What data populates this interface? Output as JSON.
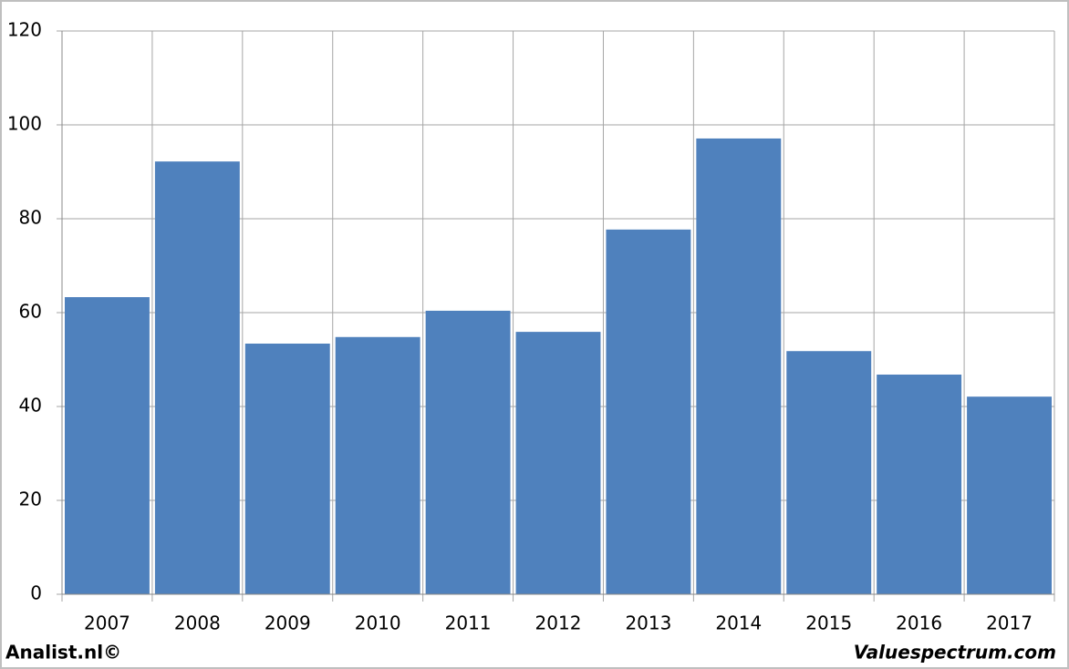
{
  "chart_data": {
    "type": "bar",
    "categories": [
      "2007",
      "2008",
      "2009",
      "2010",
      "2011",
      "2012",
      "2013",
      "2014",
      "2015",
      "2016",
      "2017"
    ],
    "values": [
      63.3,
      92.2,
      53.4,
      54.8,
      60.4,
      55.9,
      77.7,
      97.1,
      51.8,
      46.8,
      42.1
    ],
    "color": "#4f81bd",
    "ylim": [
      0,
      120
    ],
    "yticks": [
      0,
      20,
      40,
      60,
      80,
      100,
      120
    ],
    "grid": true
  },
  "footer": {
    "left": "Analist.nl©",
    "right": "Valuespectrum.com"
  }
}
